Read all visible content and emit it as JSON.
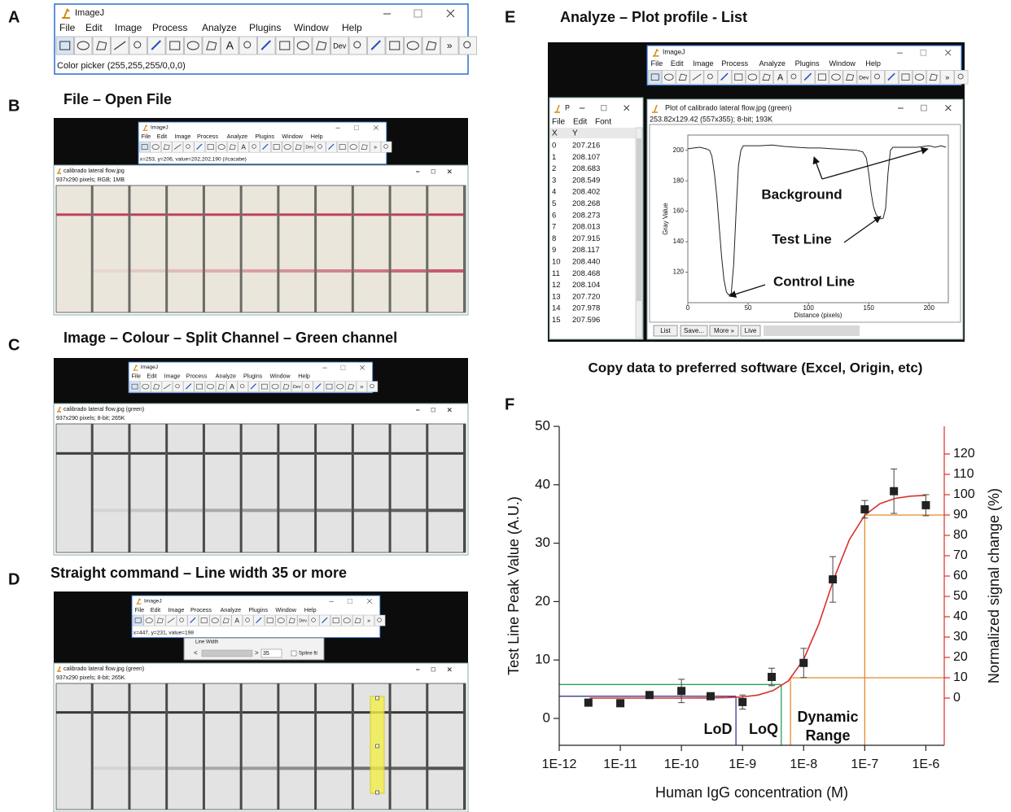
{
  "figure": {
    "A": {
      "letter": "A",
      "imagej": {
        "title": "ImageJ",
        "menu": [
          "File",
          "Edit",
          "Image",
          "Process",
          "Analyze",
          "Plugins",
          "Window",
          "Help"
        ],
        "tool_labels": [
          "A",
          "Dev",
          "»"
        ],
        "status": "Color picker (255,255,255/0,0,0)"
      }
    },
    "B": {
      "letter": "B",
      "caption": "File – Open File",
      "imagej": {
        "title": "ImageJ",
        "menu": [
          "File",
          "Edit",
          "Image",
          "Process",
          "Analyze",
          "Plugins",
          "Window",
          "Help"
        ],
        "tool_labels": [
          "A",
          "Dev",
          "»"
        ],
        "status": "x=253, y=206, value=202,202,190 (#cacabe)"
      },
      "window": {
        "title": "calibrado lateral flow.jpg",
        "info": "937x290 pixels; RGB; 1MB"
      }
    },
    "C": {
      "letter": "C",
      "caption": "Image – Colour – Split Channel – Green channel",
      "imagej": {
        "title": "ImageJ",
        "menu": [
          "File",
          "Edit",
          "Image",
          "Process",
          "Analyze",
          "Plugins",
          "Window",
          "Help"
        ],
        "tool_labels": [
          "A",
          "Dev",
          "»"
        ]
      },
      "window": {
        "title": "calibrado lateral flow.jpg (green)",
        "info": "937x290 pixels; 8-bit; 265K"
      }
    },
    "D": {
      "letter": "D",
      "caption": "Straight command – Line width 35 or more",
      "imagej": {
        "title": "ImageJ",
        "menu": [
          "File",
          "Edit",
          "Image",
          "Process",
          "Analyze",
          "Plugins",
          "Window",
          "Help"
        ],
        "tool_labels": [
          "A",
          "Dev",
          "»"
        ],
        "status": "x=447, y=231, value=198"
      },
      "dialog": {
        "title": "Line Width",
        "arrows": [
          "<",
          ">"
        ],
        "value": "35",
        "checkbox": "Spline fit"
      },
      "window": {
        "title": "calibrado lateral flow.jpg (green)",
        "info": "937x290 pixels; 8-bit; 265K"
      }
    },
    "E": {
      "letter": "E",
      "caption": "Analyze – Plot profile - List",
      "imagej": {
        "title": "ImageJ",
        "menu": [
          "File",
          "Edit",
          "Image",
          "Process",
          "Analyze",
          "Plugins",
          "Window",
          "Help"
        ],
        "tool_labels": [
          "A",
          "Dev",
          "»"
        ]
      },
      "list_window": {
        "title": "P",
        "menu": [
          "File",
          "Edit",
          "Font"
        ],
        "columns": [
          "X",
          "Y"
        ],
        "rows": [
          [
            "0",
            "207.216"
          ],
          [
            "1",
            "208.107"
          ],
          [
            "2",
            "208.683"
          ],
          [
            "3",
            "208.549"
          ],
          [
            "4",
            "208.402"
          ],
          [
            "5",
            "208.268"
          ],
          [
            "6",
            "208.273"
          ],
          [
            "7",
            "208.013"
          ],
          [
            "8",
            "207.915"
          ],
          [
            "9",
            "208.117"
          ],
          [
            "10",
            "208.440"
          ],
          [
            "11",
            "208.468"
          ],
          [
            "12",
            "208.104"
          ],
          [
            "13",
            "207.720"
          ],
          [
            "14",
            "207.978"
          ],
          [
            "15",
            "207.596"
          ]
        ]
      },
      "plot_window": {
        "title": "Plot of calibrado lateral flow.jpg (green)",
        "info": "253.82x129.42 (557x355); 8-bit; 193K",
        "buttons": [
          "List",
          "Save...",
          "More »",
          "Live"
        ]
      },
      "note": "Copy data to preferred software (Excel, Origin, etc)"
    },
    "F": {
      "letter": "F"
    }
  },
  "chart_data": [
    {
      "type": "line",
      "xlabel": "Distance (pixels)",
      "ylabel": "Gray Value",
      "color": "#222222",
      "x": [
        0,
        5,
        10,
        15,
        18,
        20,
        22,
        24,
        26,
        28,
        30,
        32,
        34,
        36,
        38,
        40,
        42,
        44,
        46,
        50,
        60,
        70,
        80,
        90,
        100,
        110,
        120,
        130,
        140,
        145,
        148,
        150,
        152,
        154,
        156,
        158,
        160,
        162,
        164,
        166,
        168,
        170,
        180,
        190,
        200,
        205,
        210,
        214
      ],
      "values": [
        201,
        201.5,
        202,
        201,
        200,
        196,
        185,
        170,
        150,
        130,
        115,
        107,
        105,
        106,
        125,
        160,
        190,
        200,
        203,
        203,
        203,
        203.5,
        202.5,
        202,
        201.5,
        201.5,
        201,
        200.5,
        200,
        199,
        195,
        185,
        172,
        163,
        158,
        156,
        155,
        155.5,
        162,
        185,
        200,
        202,
        202,
        202,
        203,
        202,
        203,
        202
      ],
      "xlim": [
        0,
        216
      ],
      "ylim": [
        100,
        210
      ],
      "xticks": [
        0,
        50,
        100,
        150,
        200
      ],
      "yticks": [
        120,
        140,
        160,
        180,
        200
      ],
      "annotations": [
        "Background",
        "Test Line",
        "Control Line"
      ]
    },
    {
      "type": "scatter",
      "xscale": "log",
      "color": "#222222",
      "xlabel": "Human IgG concentration (M)",
      "ylabel": "Test Line Peak Value (A.U.)",
      "y2label": "Normalized signal change (%)",
      "y2color": "#d9302c",
      "x": [
        3e-12,
        1e-11,
        3e-11,
        1e-10,
        3e-10,
        1e-09,
        3e-09,
        1e-08,
        3e-08,
        1e-07,
        3e-07,
        1e-06
      ],
      "values": [
        2.7,
        2.6,
        4.0,
        4.7,
        3.8,
        2.8,
        7.1,
        9.5,
        23.8,
        35.8,
        38.9,
        36.5
      ],
      "errors": [
        0.3,
        0.3,
        0.4,
        2.0,
        0.5,
        1.2,
        1.5,
        2.5,
        3.9,
        1.5,
        3.8,
        1.8
      ],
      "fit": {
        "axis": "y2",
        "color": "#d9302c",
        "x": [
          3.162e-12,
          1e-11,
          3.162e-11,
          1e-10,
          3.162e-10,
          5.623e-10,
          1e-09,
          1.778e-09,
          3.162e-09,
          5.623e-09,
          1e-08,
          1.778e-08,
          3.162e-08,
          5.623e-08,
          1e-07,
          1.778e-07,
          3.162e-07,
          5.623e-07,
          1e-06
        ],
        "values": [
          0,
          0,
          0,
          0.02,
          0.1,
          0.25,
          0.6,
          1.5,
          3.7,
          8.5,
          19,
          36.5,
          59.1,
          78,
          89.9,
          95.6,
          98.2,
          99.3,
          99.7
        ]
      },
      "xlim": [
        1e-12,
        2e-06
      ],
      "ylim": [
        -4.6,
        50
      ],
      "y2lim": [
        -23.2,
        133.6
      ],
      "xticks": [
        {
          "value": 1e-12,
          "label": "1E-12"
        },
        {
          "value": 1e-11,
          "label": "1E-11"
        },
        {
          "value": 1e-10,
          "label": "1E-10"
        },
        {
          "value": 1e-09,
          "label": "1E-9"
        },
        {
          "value": 1e-08,
          "label": "1E-8"
        },
        {
          "value": 1e-07,
          "label": "1E-7"
        },
        {
          "value": 1e-06,
          "label": "1E-6"
        }
      ],
      "yticks": [
        0,
        10,
        20,
        30,
        40,
        50
      ],
      "y2ticks": [
        0,
        10,
        20,
        30,
        40,
        50,
        60,
        70,
        80,
        90,
        100,
        110,
        120
      ],
      "annotations": [
        {
          "label": "LoD",
          "x": 7.8e-10,
          "y": 3.8,
          "color": "#3b3a8f"
        },
        {
          "label": "LoQ",
          "x": 4.3e-09,
          "y": 5.8,
          "color": "#2aa05a"
        },
        {
          "label_lines": [
            "Dynamic",
            "Range"
          ],
          "x": [
            6.1e-09,
            1e-07
          ],
          "y2": [
            10,
            90
          ],
          "color": "#e8892b"
        }
      ]
    }
  ]
}
